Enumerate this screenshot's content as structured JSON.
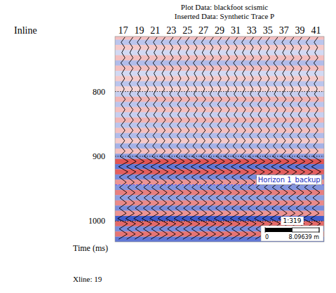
{
  "chart_data": {
    "type": "seismic",
    "title": "Plot Data: blackfoot  scismic",
    "subtitle": "Inserted Data: Synthetic Trace P",
    "x_label": "Inline",
    "y_label": "Time (ms)",
    "footer": "Xline: 19",
    "x": [
      17,
      18,
      19,
      20,
      21,
      22,
      23,
      24,
      25,
      26,
      27,
      28,
      29,
      30,
      31,
      32,
      33,
      34,
      35,
      36,
      37,
      38,
      39,
      40,
      41
    ],
    "xlim": [
      16,
      42
    ],
    "xticks": [
      17,
      19,
      21,
      23,
      25,
      27,
      29,
      31,
      33,
      35,
      37,
      39,
      41
    ],
    "ylim": [
      715,
      1032
    ],
    "yticks": [
      800,
      900,
      1000
    ],
    "grid": true,
    "t": [
      716,
      724,
      732,
      740,
      748,
      756,
      764,
      772,
      780,
      788,
      796,
      804,
      812,
      820,
      828,
      836,
      844,
      852,
      860,
      868,
      876,
      884,
      892,
      900,
      908,
      916,
      924,
      932,
      940,
      948,
      956,
      964,
      972,
      980,
      988,
      996,
      1004,
      1012,
      1020,
      1028
    ],
    "amplitudes": [
      0.3,
      -0.3,
      0.25,
      -0.2,
      0.3,
      -0.35,
      0.3,
      -0.2,
      0.25,
      -0.3,
      0.2,
      -0.25,
      0.35,
      -0.3,
      0.3,
      -0.25,
      0.35,
      -0.3,
      0.3,
      -0.35,
      0.25,
      -0.4,
      0.3,
      -0.5,
      0.8,
      -0.7,
      0.75,
      -0.6,
      0.5,
      -0.55,
      0.6,
      -0.5,
      0.55,
      -0.6,
      0.5,
      -0.85,
      0.7,
      -0.6,
      0.65,
      -0.7
    ],
    "horizon": {
      "label": "Horizon 1_backup",
      "x": 35,
      "y": 944
    },
    "scale_bar": {
      "title": "1:319",
      "ticks": [
        0,
        {
          "value": 8.09639,
          "label": "8.09639 m"
        }
      ]
    }
  }
}
